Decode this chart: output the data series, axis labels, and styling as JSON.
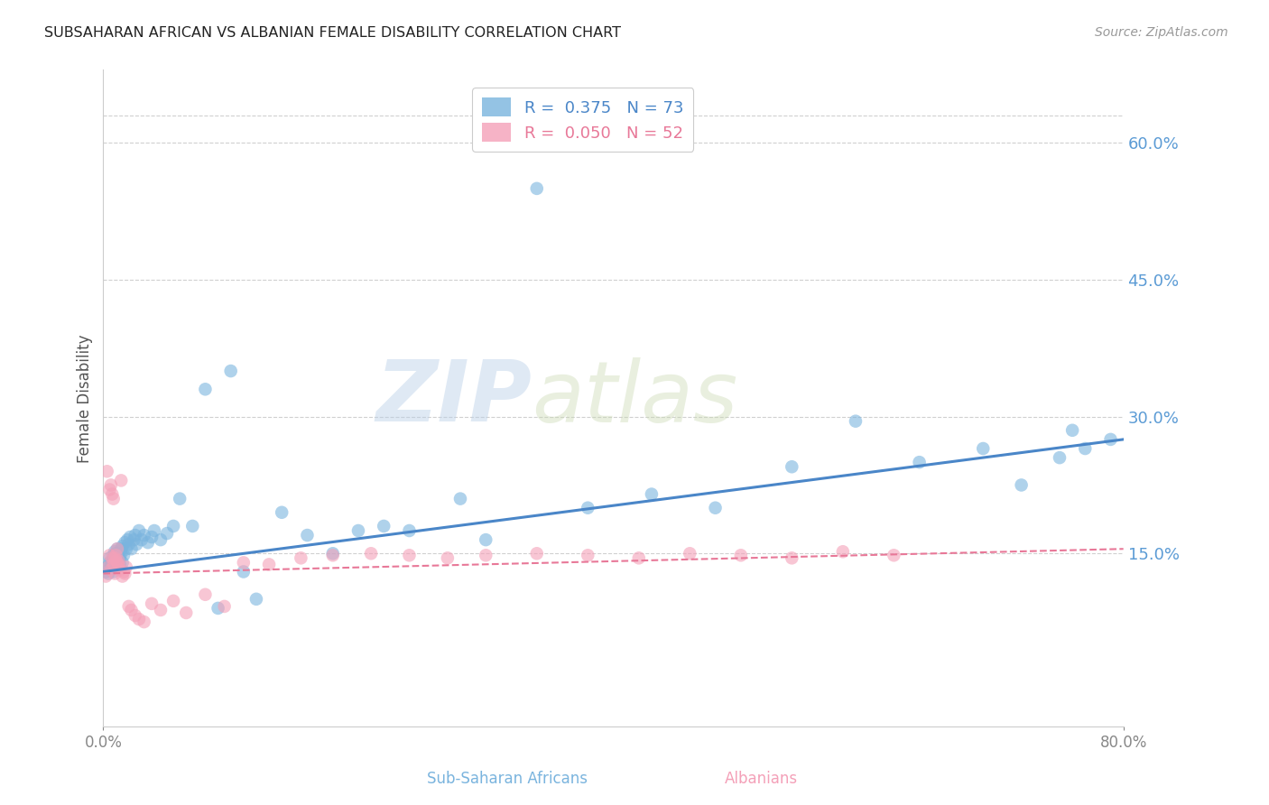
{
  "title": "SUBSAHARAN AFRICAN VS ALBANIAN FEMALE DISABILITY CORRELATION CHART",
  "source": "Source: ZipAtlas.com",
  "ylabel": "Female Disability",
  "right_ytick_labels": [
    "60.0%",
    "45.0%",
    "30.0%",
    "15.0%"
  ],
  "right_ytick_values": [
    0.6,
    0.45,
    0.3,
    0.15
  ],
  "xlim": [
    0.0,
    0.8
  ],
  "ylim": [
    -0.04,
    0.68
  ],
  "blue_color": "#7ab4de",
  "pink_color": "#f4a0b8",
  "blue_line_color": "#4a86c8",
  "pink_line_color": "#e87898",
  "watermark_zip": "ZIP",
  "watermark_atlas": "atlas",
  "blue_line_x": [
    0.0,
    0.8
  ],
  "blue_line_y": [
    0.13,
    0.275
  ],
  "pink_line_x": [
    0.0,
    0.8
  ],
  "pink_line_y": [
    0.128,
    0.155
  ],
  "legend_blue_label": "R =  0.375   N = 73",
  "legend_pink_label": "R =  0.050   N = 52",
  "bottom_label_blue": "Sub-Saharan Africans",
  "bottom_label_pink": "Albanians",
  "blue_scatter_x": [
    0.002,
    0.003,
    0.004,
    0.005,
    0.005,
    0.006,
    0.006,
    0.007,
    0.007,
    0.008,
    0.008,
    0.009,
    0.009,
    0.01,
    0.01,
    0.01,
    0.011,
    0.011,
    0.012,
    0.012,
    0.013,
    0.013,
    0.014,
    0.014,
    0.015,
    0.015,
    0.016,
    0.017,
    0.018,
    0.019,
    0.02,
    0.021,
    0.022,
    0.024,
    0.025,
    0.026,
    0.028,
    0.03,
    0.032,
    0.035,
    0.038,
    0.04,
    0.045,
    0.05,
    0.055,
    0.06,
    0.07,
    0.08,
    0.09,
    0.1,
    0.11,
    0.12,
    0.14,
    0.16,
    0.18,
    0.2,
    0.22,
    0.24,
    0.28,
    0.3,
    0.34,
    0.38,
    0.43,
    0.48,
    0.54,
    0.59,
    0.64,
    0.69,
    0.72,
    0.75,
    0.76,
    0.77,
    0.79
  ],
  "blue_scatter_y": [
    0.13,
    0.135,
    0.128,
    0.14,
    0.145,
    0.132,
    0.138,
    0.135,
    0.142,
    0.13,
    0.148,
    0.138,
    0.152,
    0.135,
    0.143,
    0.15,
    0.14,
    0.155,
    0.142,
    0.148,
    0.138,
    0.145,
    0.155,
    0.15,
    0.14,
    0.158,
    0.148,
    0.162,
    0.155,
    0.165,
    0.16,
    0.168,
    0.155,
    0.165,
    0.17,
    0.16,
    0.175,
    0.165,
    0.17,
    0.162,
    0.168,
    0.175,
    0.165,
    0.172,
    0.18,
    0.21,
    0.18,
    0.33,
    0.09,
    0.35,
    0.13,
    0.1,
    0.195,
    0.17,
    0.15,
    0.175,
    0.18,
    0.175,
    0.21,
    0.165,
    0.55,
    0.2,
    0.215,
    0.2,
    0.245,
    0.295,
    0.25,
    0.265,
    0.225,
    0.255,
    0.285,
    0.265,
    0.275
  ],
  "pink_scatter_x": [
    0.002,
    0.003,
    0.004,
    0.005,
    0.005,
    0.006,
    0.006,
    0.007,
    0.007,
    0.008,
    0.008,
    0.009,
    0.009,
    0.01,
    0.01,
    0.011,
    0.011,
    0.012,
    0.012,
    0.013,
    0.014,
    0.015,
    0.016,
    0.017,
    0.018,
    0.02,
    0.022,
    0.025,
    0.028,
    0.032,
    0.038,
    0.045,
    0.055,
    0.065,
    0.08,
    0.095,
    0.11,
    0.13,
    0.155,
    0.18,
    0.21,
    0.24,
    0.27,
    0.3,
    0.34,
    0.38,
    0.42,
    0.46,
    0.5,
    0.54,
    0.58,
    0.62
  ],
  "pink_scatter_y": [
    0.125,
    0.24,
    0.135,
    0.148,
    0.22,
    0.225,
    0.132,
    0.215,
    0.145,
    0.21,
    0.138,
    0.145,
    0.128,
    0.142,
    0.148,
    0.14,
    0.155,
    0.142,
    0.138,
    0.132,
    0.23,
    0.125,
    0.13,
    0.128,
    0.135,
    0.092,
    0.088,
    0.082,
    0.078,
    0.075,
    0.095,
    0.088,
    0.098,
    0.085,
    0.105,
    0.092,
    0.14,
    0.138,
    0.145,
    0.148,
    0.15,
    0.148,
    0.145,
    0.148,
    0.15,
    0.148,
    0.145,
    0.15,
    0.148,
    0.145,
    0.152,
    0.148
  ]
}
